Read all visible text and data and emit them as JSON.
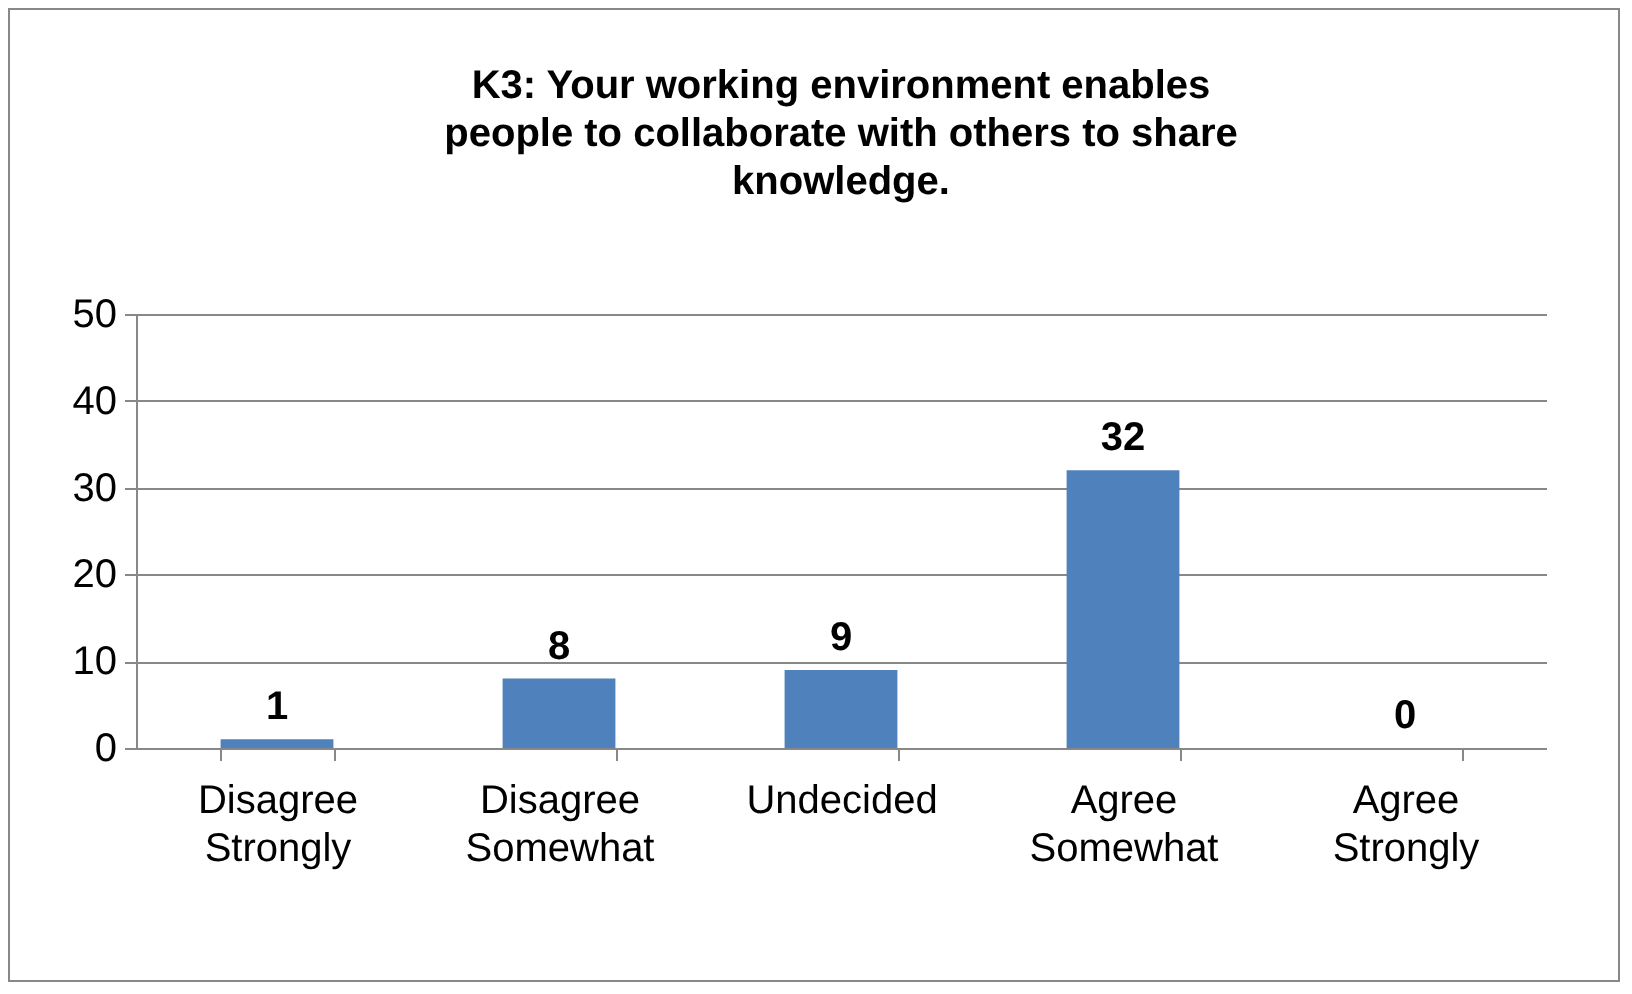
{
  "chart_data": {
    "type": "bar",
    "title": "K3: Your working environment enables people to collaborate with others to share knowledge.",
    "categories": [
      "Disagree Strongly",
      "Disagree Somewhat",
      "Undecided",
      "Agree Somewhat",
      "Agree Strongly"
    ],
    "values": [
      1,
      8,
      9,
      32,
      0
    ],
    "color": "#4f81bd",
    "ylim": [
      0,
      50
    ],
    "yticks": [
      0,
      10,
      20,
      30,
      40,
      50
    ],
    "grid": "y",
    "data_labels": true
  }
}
